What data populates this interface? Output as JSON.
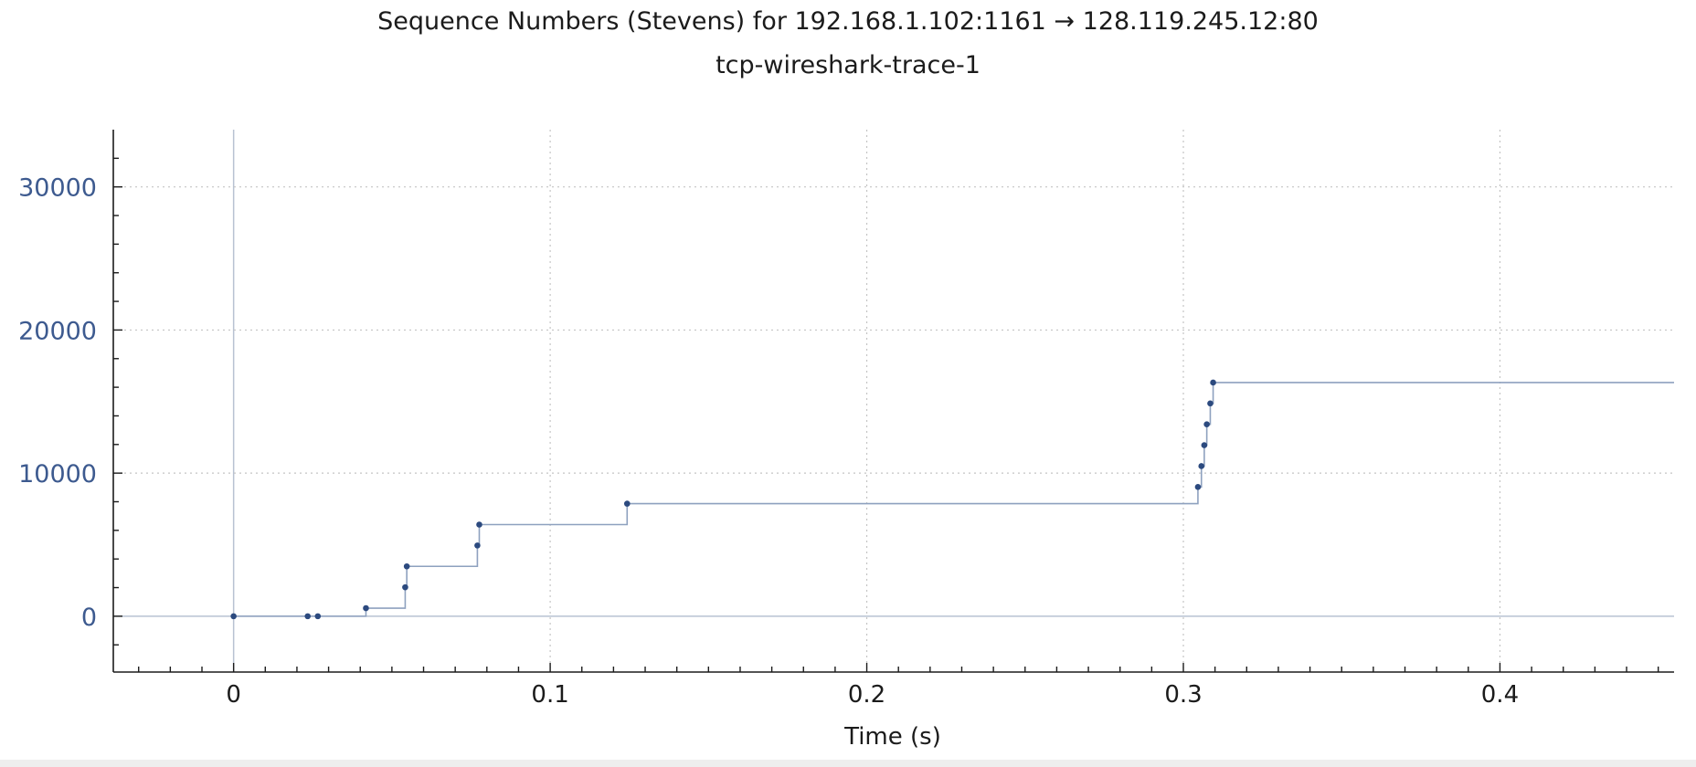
{
  "header": {
    "title": "Sequence Numbers (Stevens) for 192.168.1.102:1161 → 128.119.245.12:80",
    "subtitle": "tcp-wireshark-trace-1"
  },
  "colors": {
    "background": "#ffffff",
    "axis": "#1b1b1b",
    "ytick_label": "#3d5a8f",
    "xtick_label": "#1b1b1b",
    "grid": "#c4c4c4",
    "zero_line": "#b8c2d2",
    "series_line": "#8ea1bf",
    "series_point": "#2c4a7f"
  },
  "chart_data": {
    "type": "scatter",
    "title": "Sequence Numbers (Stevens) for 192.168.1.102:1161 → 128.119.245.12:80",
    "subtitle": "tcp-wireshark-trace-1",
    "xlabel": "Time (s)",
    "ylabel": "",
    "xlim": [
      -0.038,
      0.455
    ],
    "ylim": [
      -3900,
      34000
    ],
    "xticks": [
      0,
      0.1,
      0.2,
      0.3,
      0.4
    ],
    "xtick_labels": [
      "0",
      "0.1",
      "0.2",
      "0.3",
      "0.4"
    ],
    "yticks": [
      0,
      10000,
      20000,
      30000
    ],
    "ytick_labels": [
      "0",
      "10000",
      "20000",
      "30000"
    ],
    "grid": true,
    "step_line": true,
    "series": [
      {
        "points": [
          {
            "x": 0.0,
            "y": 0
          },
          {
            "x": 0.0234,
            "y": 0
          },
          {
            "x": 0.0266,
            "y": 0
          },
          {
            "x": 0.0418,
            "y": 565
          },
          {
            "x": 0.0542,
            "y": 2025
          },
          {
            "x": 0.0547,
            "y": 3485
          },
          {
            "x": 0.077,
            "y": 4945
          },
          {
            "x": 0.0776,
            "y": 6405
          },
          {
            "x": 0.1243,
            "y": 7865
          },
          {
            "x": 0.3046,
            "y": 9030
          },
          {
            "x": 0.3057,
            "y": 10490
          },
          {
            "x": 0.3066,
            "y": 11950
          },
          {
            "x": 0.3074,
            "y": 13410
          },
          {
            "x": 0.3085,
            "y": 14870
          },
          {
            "x": 0.3094,
            "y": 16330
          }
        ],
        "line_end_x": 0.455
      }
    ]
  }
}
